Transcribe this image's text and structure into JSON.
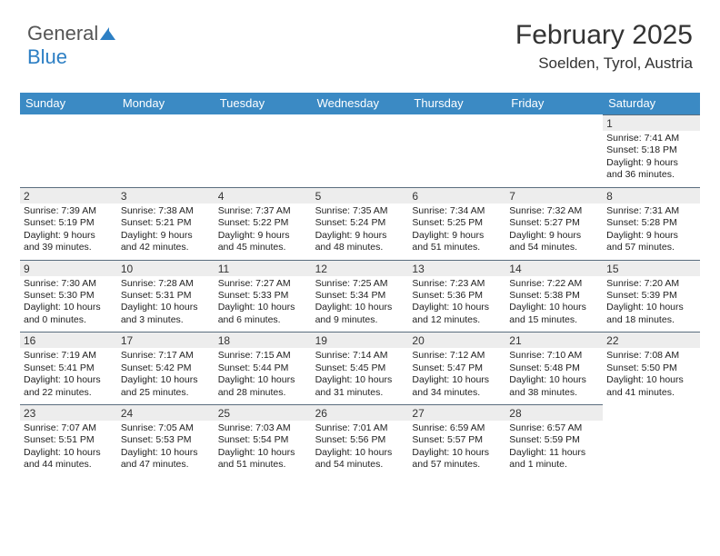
{
  "logo": {
    "text1": "General",
    "text2": "Blue"
  },
  "header": {
    "title": "February 2025",
    "location": "Soelden, Tyrol, Austria"
  },
  "weekdays": [
    "Sunday",
    "Monday",
    "Tuesday",
    "Wednesday",
    "Thursday",
    "Friday",
    "Saturday"
  ],
  "colors": {
    "header_bg": "#3b8ac4",
    "header_fg": "#ffffff",
    "daynum_bg": "#ededed",
    "daynum_border": "#5a6d7e",
    "text": "#222222",
    "background": "#ffffff"
  },
  "fonts": {
    "title_size_pt": 22,
    "location_size_pt": 13,
    "weekday_size_pt": 10,
    "body_size_pt": 8
  },
  "days": [
    {
      "n": "",
      "lines": []
    },
    {
      "n": "",
      "lines": []
    },
    {
      "n": "",
      "lines": []
    },
    {
      "n": "",
      "lines": []
    },
    {
      "n": "",
      "lines": []
    },
    {
      "n": "",
      "lines": []
    },
    {
      "n": "1",
      "lines": [
        "Sunrise: 7:41 AM",
        "Sunset: 5:18 PM",
        "Daylight: 9 hours and 36 minutes."
      ]
    },
    {
      "n": "2",
      "lines": [
        "Sunrise: 7:39 AM",
        "Sunset: 5:19 PM",
        "Daylight: 9 hours and 39 minutes."
      ]
    },
    {
      "n": "3",
      "lines": [
        "Sunrise: 7:38 AM",
        "Sunset: 5:21 PM",
        "Daylight: 9 hours and 42 minutes."
      ]
    },
    {
      "n": "4",
      "lines": [
        "Sunrise: 7:37 AM",
        "Sunset: 5:22 PM",
        "Daylight: 9 hours and 45 minutes."
      ]
    },
    {
      "n": "5",
      "lines": [
        "Sunrise: 7:35 AM",
        "Sunset: 5:24 PM",
        "Daylight: 9 hours and 48 minutes."
      ]
    },
    {
      "n": "6",
      "lines": [
        "Sunrise: 7:34 AM",
        "Sunset: 5:25 PM",
        "Daylight: 9 hours and 51 minutes."
      ]
    },
    {
      "n": "7",
      "lines": [
        "Sunrise: 7:32 AM",
        "Sunset: 5:27 PM",
        "Daylight: 9 hours and 54 minutes."
      ]
    },
    {
      "n": "8",
      "lines": [
        "Sunrise: 7:31 AM",
        "Sunset: 5:28 PM",
        "Daylight: 9 hours and 57 minutes."
      ]
    },
    {
      "n": "9",
      "lines": [
        "Sunrise: 7:30 AM",
        "Sunset: 5:30 PM",
        "Daylight: 10 hours and 0 minutes."
      ]
    },
    {
      "n": "10",
      "lines": [
        "Sunrise: 7:28 AM",
        "Sunset: 5:31 PM",
        "Daylight: 10 hours and 3 minutes."
      ]
    },
    {
      "n": "11",
      "lines": [
        "Sunrise: 7:27 AM",
        "Sunset: 5:33 PM",
        "Daylight: 10 hours and 6 minutes."
      ]
    },
    {
      "n": "12",
      "lines": [
        "Sunrise: 7:25 AM",
        "Sunset: 5:34 PM",
        "Daylight: 10 hours and 9 minutes."
      ]
    },
    {
      "n": "13",
      "lines": [
        "Sunrise: 7:23 AM",
        "Sunset: 5:36 PM",
        "Daylight: 10 hours and 12 minutes."
      ]
    },
    {
      "n": "14",
      "lines": [
        "Sunrise: 7:22 AM",
        "Sunset: 5:38 PM",
        "Daylight: 10 hours and 15 minutes."
      ]
    },
    {
      "n": "15",
      "lines": [
        "Sunrise: 7:20 AM",
        "Sunset: 5:39 PM",
        "Daylight: 10 hours and 18 minutes."
      ]
    },
    {
      "n": "16",
      "lines": [
        "Sunrise: 7:19 AM",
        "Sunset: 5:41 PM",
        "Daylight: 10 hours and 22 minutes."
      ]
    },
    {
      "n": "17",
      "lines": [
        "Sunrise: 7:17 AM",
        "Sunset: 5:42 PM",
        "Daylight: 10 hours and 25 minutes."
      ]
    },
    {
      "n": "18",
      "lines": [
        "Sunrise: 7:15 AM",
        "Sunset: 5:44 PM",
        "Daylight: 10 hours and 28 minutes."
      ]
    },
    {
      "n": "19",
      "lines": [
        "Sunrise: 7:14 AM",
        "Sunset: 5:45 PM",
        "Daylight: 10 hours and 31 minutes."
      ]
    },
    {
      "n": "20",
      "lines": [
        "Sunrise: 7:12 AM",
        "Sunset: 5:47 PM",
        "Daylight: 10 hours and 34 minutes."
      ]
    },
    {
      "n": "21",
      "lines": [
        "Sunrise: 7:10 AM",
        "Sunset: 5:48 PM",
        "Daylight: 10 hours and 38 minutes."
      ]
    },
    {
      "n": "22",
      "lines": [
        "Sunrise: 7:08 AM",
        "Sunset: 5:50 PM",
        "Daylight: 10 hours and 41 minutes."
      ]
    },
    {
      "n": "23",
      "lines": [
        "Sunrise: 7:07 AM",
        "Sunset: 5:51 PM",
        "Daylight: 10 hours and 44 minutes."
      ]
    },
    {
      "n": "24",
      "lines": [
        "Sunrise: 7:05 AM",
        "Sunset: 5:53 PM",
        "Daylight: 10 hours and 47 minutes."
      ]
    },
    {
      "n": "25",
      "lines": [
        "Sunrise: 7:03 AM",
        "Sunset: 5:54 PM",
        "Daylight: 10 hours and 51 minutes."
      ]
    },
    {
      "n": "26",
      "lines": [
        "Sunrise: 7:01 AM",
        "Sunset: 5:56 PM",
        "Daylight: 10 hours and 54 minutes."
      ]
    },
    {
      "n": "27",
      "lines": [
        "Sunrise: 6:59 AM",
        "Sunset: 5:57 PM",
        "Daylight: 10 hours and 57 minutes."
      ]
    },
    {
      "n": "28",
      "lines": [
        "Sunrise: 6:57 AM",
        "Sunset: 5:59 PM",
        "Daylight: 11 hours and 1 minute."
      ]
    },
    {
      "n": "",
      "lines": []
    }
  ]
}
